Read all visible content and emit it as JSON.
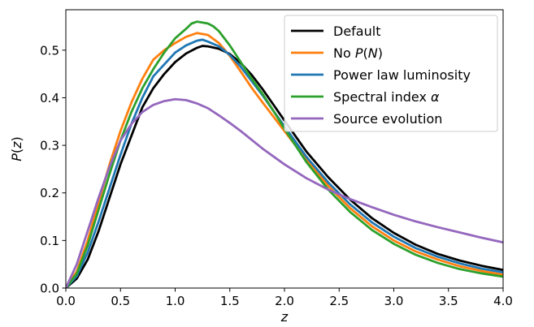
{
  "chart_data": {
    "type": "line",
    "title": "",
    "xlabel": "z",
    "ylabel": "P(z)",
    "xlim": [
      0.0,
      4.0
    ],
    "ylim": [
      0.0,
      0.585
    ],
    "xticks": [
      0.0,
      0.5,
      1.0,
      1.5,
      2.0,
      2.5,
      3.0,
      3.5,
      4.0
    ],
    "yticks": [
      0.0,
      0.1,
      0.2,
      0.3,
      0.4,
      0.5
    ],
    "grid": false,
    "legend_position": "top-right",
    "series": [
      {
        "name": "Default",
        "color": "#000000",
        "x": [
          0.0,
          0.1,
          0.2,
          0.3,
          0.4,
          0.5,
          0.6,
          0.7,
          0.8,
          0.9,
          1.0,
          1.1,
          1.2,
          1.25,
          1.3,
          1.4,
          1.5,
          1.6,
          1.7,
          1.8,
          1.9,
          2.0,
          2.2,
          2.4,
          2.6,
          2.8,
          3.0,
          3.2,
          3.4,
          3.6,
          3.8,
          4.0
        ],
        "y": [
          0.0,
          0.02,
          0.06,
          0.12,
          0.19,
          0.26,
          0.32,
          0.38,
          0.42,
          0.45,
          0.475,
          0.493,
          0.505,
          0.509,
          0.508,
          0.503,
          0.492,
          0.473,
          0.448,
          0.418,
          0.385,
          0.352,
          0.287,
          0.233,
          0.186,
          0.147,
          0.116,
          0.091,
          0.072,
          0.058,
          0.047,
          0.038
        ]
      },
      {
        "name": "No P(N)",
        "color": "#ff7f0e",
        "x": [
          0.0,
          0.1,
          0.2,
          0.3,
          0.4,
          0.5,
          0.6,
          0.7,
          0.8,
          0.9,
          1.0,
          1.1,
          1.2,
          1.3,
          1.4,
          1.5,
          1.6,
          1.7,
          1.8,
          1.9,
          2.0,
          2.2,
          2.4,
          2.6,
          2.8,
          3.0,
          3.2,
          3.4,
          3.6,
          3.8,
          4.0
        ],
        "y": [
          0.0,
          0.035,
          0.1,
          0.18,
          0.26,
          0.33,
          0.39,
          0.44,
          0.48,
          0.5,
          0.515,
          0.528,
          0.536,
          0.532,
          0.515,
          0.488,
          0.455,
          0.421,
          0.39,
          0.36,
          0.33,
          0.27,
          0.215,
          0.168,
          0.13,
          0.1,
          0.077,
          0.06,
          0.046,
          0.036,
          0.028
        ]
      },
      {
        "name": "Power law luminosity",
        "color": "#1f77b4",
        "x": [
          0.0,
          0.1,
          0.2,
          0.3,
          0.4,
          0.5,
          0.6,
          0.7,
          0.8,
          0.9,
          1.0,
          1.1,
          1.2,
          1.25,
          1.3,
          1.4,
          1.5,
          1.6,
          1.7,
          1.8,
          1.9,
          2.0,
          2.2,
          2.4,
          2.6,
          2.8,
          3.0,
          3.2,
          3.4,
          3.6,
          3.8,
          4.0
        ],
        "y": [
          0.0,
          0.025,
          0.075,
          0.14,
          0.21,
          0.28,
          0.345,
          0.4,
          0.445,
          0.47,
          0.495,
          0.51,
          0.52,
          0.522,
          0.518,
          0.508,
          0.49,
          0.465,
          0.435,
          0.405,
          0.372,
          0.34,
          0.276,
          0.222,
          0.176,
          0.138,
          0.108,
          0.084,
          0.066,
          0.052,
          0.041,
          0.033
        ]
      },
      {
        "name": "Spectral index α",
        "color": "#2ca02c",
        "x": [
          0.0,
          0.1,
          0.2,
          0.3,
          0.4,
          0.5,
          0.6,
          0.7,
          0.8,
          0.9,
          1.0,
          1.1,
          1.15,
          1.2,
          1.3,
          1.35,
          1.4,
          1.5,
          1.6,
          1.7,
          1.8,
          1.9,
          2.0,
          2.2,
          2.4,
          2.6,
          2.8,
          3.0,
          3.2,
          3.4,
          3.6,
          3.8,
          4.0
        ],
        "y": [
          0.0,
          0.03,
          0.09,
          0.165,
          0.24,
          0.31,
          0.37,
          0.42,
          0.46,
          0.495,
          0.525,
          0.545,
          0.556,
          0.56,
          0.556,
          0.55,
          0.54,
          0.51,
          0.475,
          0.44,
          0.408,
          0.372,
          0.335,
          0.265,
          0.207,
          0.16,
          0.122,
          0.093,
          0.07,
          0.053,
          0.04,
          0.031,
          0.024
        ]
      },
      {
        "name": "Source evolution",
        "color": "#9467bd",
        "x": [
          0.0,
          0.1,
          0.2,
          0.3,
          0.4,
          0.5,
          0.6,
          0.7,
          0.8,
          0.9,
          1.0,
          1.1,
          1.2,
          1.3,
          1.4,
          1.5,
          1.6,
          1.8,
          2.0,
          2.2,
          2.4,
          2.6,
          2.8,
          3.0,
          3.2,
          3.4,
          3.6,
          3.8,
          4.0
        ],
        "y": [
          0.0,
          0.05,
          0.12,
          0.19,
          0.255,
          0.31,
          0.345,
          0.37,
          0.385,
          0.393,
          0.397,
          0.395,
          0.388,
          0.378,
          0.363,
          0.347,
          0.33,
          0.293,
          0.26,
          0.231,
          0.207,
          0.187,
          0.17,
          0.154,
          0.14,
          0.128,
          0.117,
          0.106,
          0.096
        ]
      }
    ]
  }
}
